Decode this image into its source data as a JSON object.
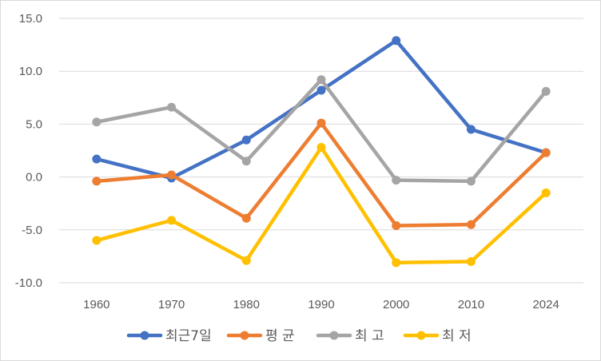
{
  "chart_data": {
    "type": "line",
    "categories": [
      "1960",
      "1970",
      "1980",
      "1990",
      "2000",
      "2010",
      "2024"
    ],
    "ylim": [
      -10,
      15
    ],
    "yticks": [
      "15.0",
      "10.0",
      "5.0",
      "0.0",
      "-5.0",
      "-10.0"
    ],
    "ytick_values": [
      15,
      10,
      5,
      0,
      -5,
      -10
    ],
    "grid": "horizontal",
    "legend_position": "bottom",
    "series": [
      {
        "name": "최근7일",
        "color": "#4472c4",
        "values": [
          1.7,
          -0.1,
          3.5,
          8.2,
          12.9,
          4.5,
          2.3
        ]
      },
      {
        "name": "평 균",
        "color": "#ed7d31",
        "values": [
          -0.4,
          0.2,
          -3.9,
          5.1,
          -4.6,
          -4.5,
          2.3
        ]
      },
      {
        "name": "최 고",
        "color": "#a5a5a5",
        "values": [
          5.2,
          6.6,
          1.5,
          9.2,
          -0.3,
          -0.4,
          8.1
        ]
      },
      {
        "name": "최 저",
        "color": "#ffc000",
        "values": [
          -6.0,
          -4.1,
          -7.9,
          2.8,
          -8.1,
          -8.0,
          -1.5
        ]
      }
    ]
  }
}
